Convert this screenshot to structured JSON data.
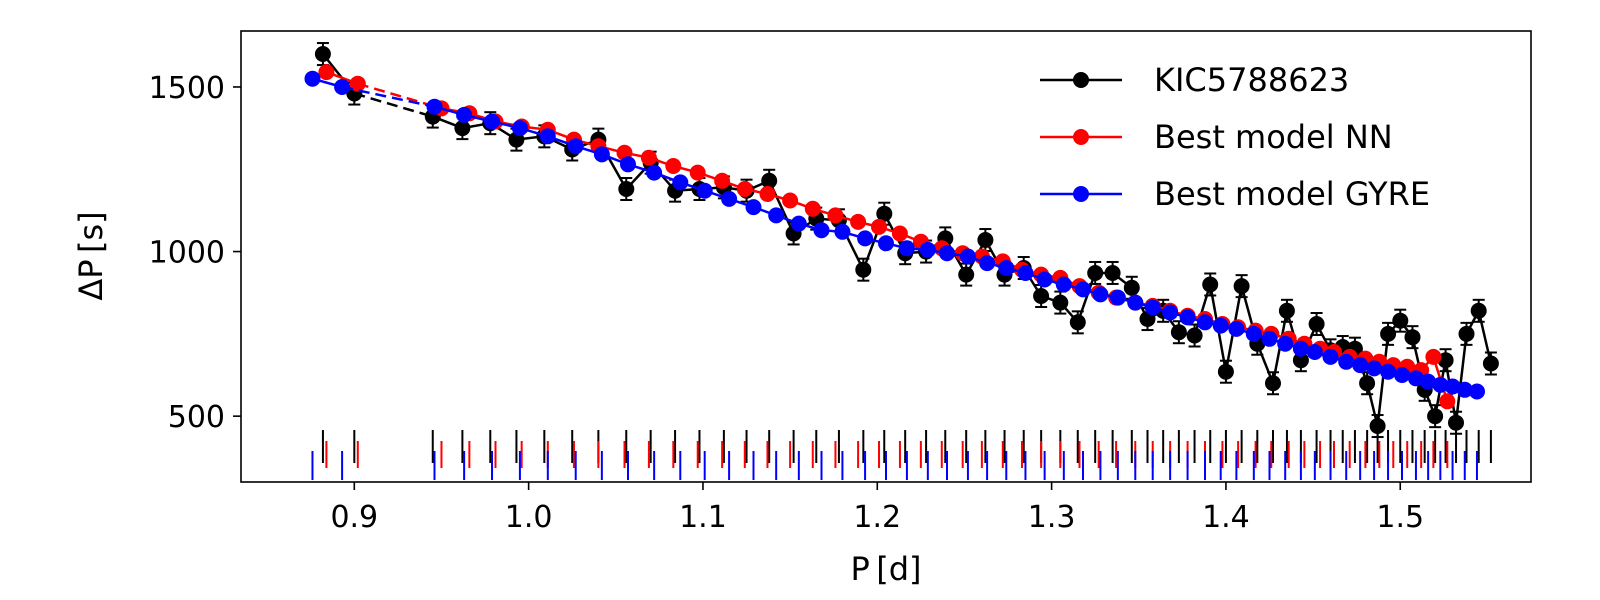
{
  "chart_data": {
    "type": "line",
    "title": "",
    "xlabel": "P [d]",
    "ylabel": "ΔP [s]",
    "xlim": [
      0.835,
      1.575
    ],
    "ylim": [
      300,
      1670
    ],
    "xticks": [
      0.9,
      1.0,
      1.1,
      1.2,
      1.3,
      1.4,
      1.5
    ],
    "xtick_labels": [
      "0.9",
      "1.0",
      "1.1",
      "1.2",
      "1.3",
      "1.4",
      "1.5"
    ],
    "yticks": [
      500,
      1000,
      1500
    ],
    "ytick_labels": [
      "500",
      "1000",
      "1500"
    ],
    "legend_position": "top-right",
    "series": [
      {
        "name": "KIC5788623",
        "color": "#000000",
        "gap_after_x": 0.9,
        "has_error_bars": true,
        "x": [
          0.882,
          0.9,
          0.945,
          0.962,
          0.978,
          0.993,
          1.009,
          1.025,
          1.04,
          1.056,
          1.07,
          1.084,
          1.098,
          1.112,
          1.125,
          1.138,
          1.152,
          1.165,
          1.178,
          1.192,
          1.204,
          1.216,
          1.228,
          1.239,
          1.251,
          1.262,
          1.273,
          1.284,
          1.294,
          1.305,
          1.315,
          1.325,
          1.335,
          1.346,
          1.355,
          1.364,
          1.373,
          1.382,
          1.391,
          1.4,
          1.409,
          1.418,
          1.427,
          1.435,
          1.443,
          1.452,
          1.46,
          1.467,
          1.474,
          1.481,
          1.487,
          1.493,
          1.5,
          1.507,
          1.514,
          1.52,
          1.526,
          1.532,
          1.538,
          1.545,
          1.552
        ],
        "y": [
          1600,
          1480,
          1410,
          1375,
          1390,
          1340,
          1350,
          1310,
          1340,
          1190,
          1270,
          1185,
          1190,
          1195,
          1185,
          1215,
          1055,
          1100,
          1095,
          945,
          1115,
          995,
          1000,
          1040,
          930,
          1035,
          930,
          950,
          865,
          845,
          785,
          935,
          935,
          890,
          795,
          820,
          755,
          745,
          900,
          635,
          895,
          720,
          600,
          820,
          670,
          780,
          700,
          710,
          705,
          600,
          470,
          750,
          790,
          740,
          580,
          500,
          670,
          480,
          750,
          820,
          660
        ]
      },
      {
        "name": "Best model NN",
        "color": "#ff0000",
        "gap_after_x": 0.902,
        "has_error_bars": false,
        "x": [
          0.884,
          0.902,
          0.95,
          0.966,
          0.981,
          0.996,
          1.011,
          1.026,
          1.04,
          1.055,
          1.069,
          1.083,
          1.097,
          1.111,
          1.124,
          1.137,
          1.15,
          1.163,
          1.176,
          1.189,
          1.201,
          1.213,
          1.225,
          1.237,
          1.249,
          1.26,
          1.272,
          1.283,
          1.294,
          1.305,
          1.316,
          1.327,
          1.337,
          1.348,
          1.358,
          1.368,
          1.378,
          1.388,
          1.398,
          1.407,
          1.417,
          1.426,
          1.436,
          1.445,
          1.454,
          1.462,
          1.471,
          1.48,
          1.488,
          1.496,
          1.504,
          1.512,
          1.519,
          1.527
        ],
        "y": [
          1545,
          1510,
          1435,
          1420,
          1395,
          1380,
          1370,
          1340,
          1320,
          1300,
          1285,
          1260,
          1240,
          1215,
          1190,
          1175,
          1155,
          1130,
          1110,
          1090,
          1075,
          1055,
          1030,
          1010,
          995,
          985,
          970,
          945,
          930,
          920,
          895,
          875,
          860,
          845,
          835,
          820,
          805,
          795,
          780,
          770,
          760,
          750,
          735,
          720,
          705,
          695,
          680,
          675,
          665,
          655,
          650,
          640,
          680,
          545
        ]
      },
      {
        "name": "Best model GYRE",
        "color": "#0000ff",
        "gap_after_x": 0.893,
        "has_error_bars": false,
        "x": [
          0.876,
          0.893,
          0.946,
          0.963,
          0.979,
          0.995,
          1.011,
          1.027,
          1.042,
          1.057,
          1.072,
          1.087,
          1.101,
          1.115,
          1.129,
          1.142,
          1.155,
          1.168,
          1.18,
          1.193,
          1.205,
          1.217,
          1.229,
          1.24,
          1.252,
          1.263,
          1.274,
          1.285,
          1.296,
          1.307,
          1.318,
          1.328,
          1.338,
          1.348,
          1.358,
          1.368,
          1.378,
          1.388,
          1.397,
          1.406,
          1.416,
          1.425,
          1.434,
          1.443,
          1.451,
          1.46,
          1.469,
          1.477,
          1.485,
          1.493,
          1.501,
          1.509,
          1.516,
          1.523,
          1.53,
          1.537,
          1.544
        ],
        "y": [
          1525,
          1500,
          1440,
          1415,
          1395,
          1375,
          1350,
          1320,
          1295,
          1265,
          1240,
          1210,
          1185,
          1160,
          1135,
          1110,
          1085,
          1065,
          1060,
          1040,
          1025,
          1010,
          1005,
          995,
          985,
          965,
          950,
          935,
          915,
          900,
          885,
          870,
          860,
          845,
          830,
          815,
          800,
          785,
          775,
          765,
          750,
          735,
          720,
          705,
          695,
          680,
          665,
          655,
          645,
          635,
          625,
          615,
          605,
          595,
          590,
          580,
          575
        ]
      }
    ]
  }
}
